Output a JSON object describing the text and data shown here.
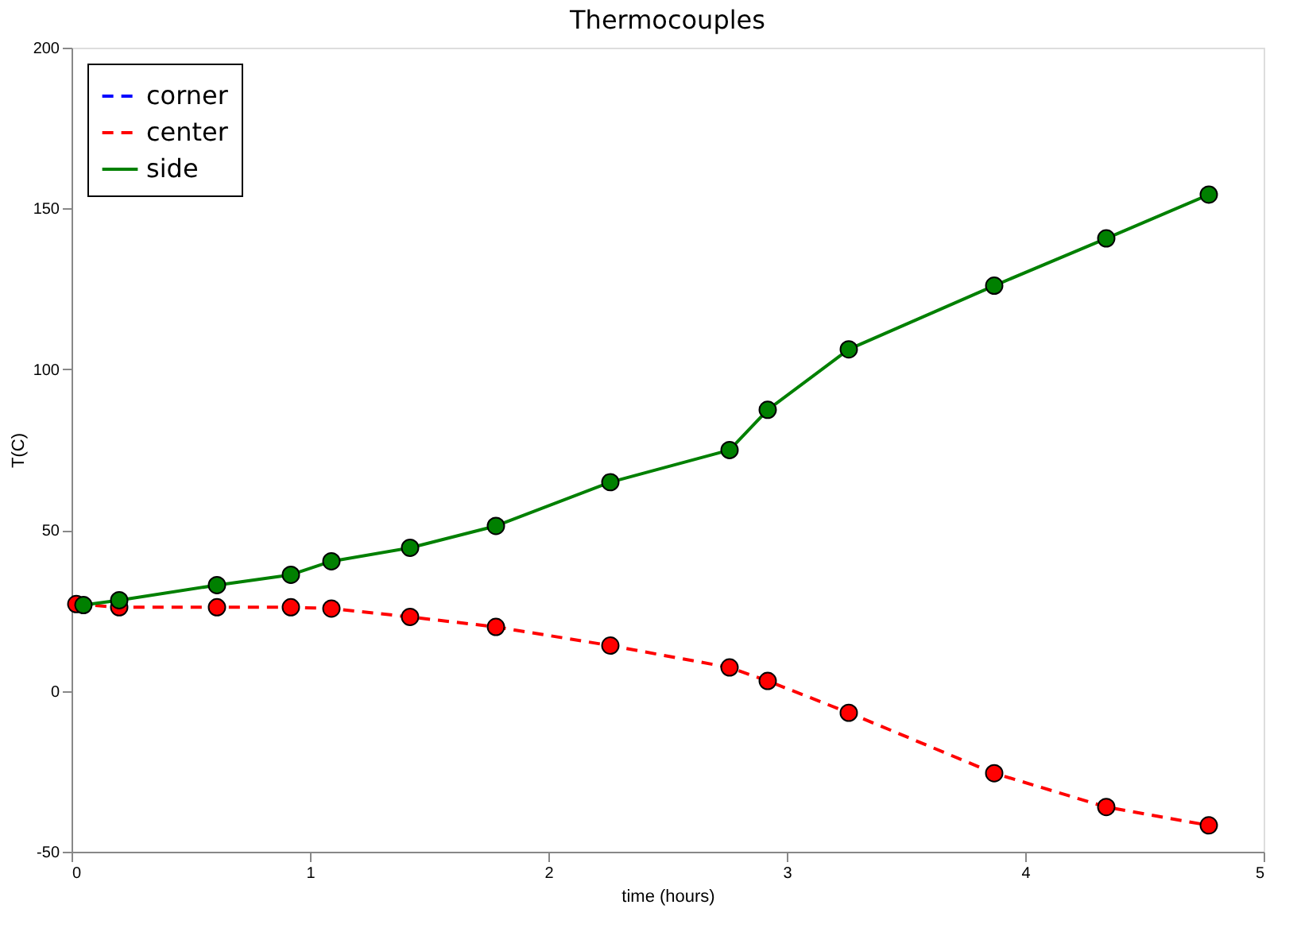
{
  "chart_data": {
    "type": "line",
    "title": "Thermocouples",
    "xlabel": "time (hours)",
    "ylabel": "T(C)",
    "xlim": [
      0,
      5
    ],
    "xticks": [
      {
        "value": 0,
        "label": "0"
      },
      {
        "value": 1,
        "label": "1"
      },
      {
        "value": 2,
        "label": "2"
      },
      {
        "value": 3,
        "label": "3"
      },
      {
        "value": 4,
        "label": "4"
      },
      {
        "value": 5,
        "label": "5"
      }
    ],
    "ylim": [
      -50,
      200
    ],
    "yticks": [
      -50,
      0,
      50,
      100,
      150,
      200
    ],
    "grid": false,
    "legend": "top left",
    "series": [
      {
        "name": "corner",
        "color": "#0000ff",
        "line_style": "dashed",
        "marker": "none",
        "values": [
          null,
          null,
          null,
          null,
          null,
          null,
          null,
          null,
          null,
          null,
          null,
          null,
          null,
          null
        ]
      },
      {
        "name": "center",
        "color": "#ff0000",
        "line_style": "dashed",
        "marker": "circle",
        "x": [
          0.02,
          0.2,
          0.61,
          0.92,
          1.09,
          1.42,
          1.78,
          2.26,
          2.76,
          2.92,
          3.26,
          3.87,
          4.34,
          4.77
        ],
        "values": [
          27,
          26,
          26,
          26,
          25.6,
          23,
          19.9,
          14.1,
          7.3,
          3.1,
          -6.8,
          -25.6,
          -36.1,
          -41.8
        ]
      },
      {
        "name": "side",
        "color": "#008000",
        "line_style": "solid",
        "marker": "circle",
        "x": [
          0.05,
          0.2,
          0.61,
          0.92,
          1.09,
          1.42,
          1.78,
          2.26,
          2.76,
          2.92,
          3.26,
          3.87,
          4.34,
          4.77
        ],
        "values": [
          26.7,
          28.2,
          32.9,
          36.1,
          40.3,
          44.5,
          51.3,
          64.9,
          74.9,
          87.4,
          106.2,
          126.0,
          140.7,
          154.3
        ]
      }
    ]
  }
}
